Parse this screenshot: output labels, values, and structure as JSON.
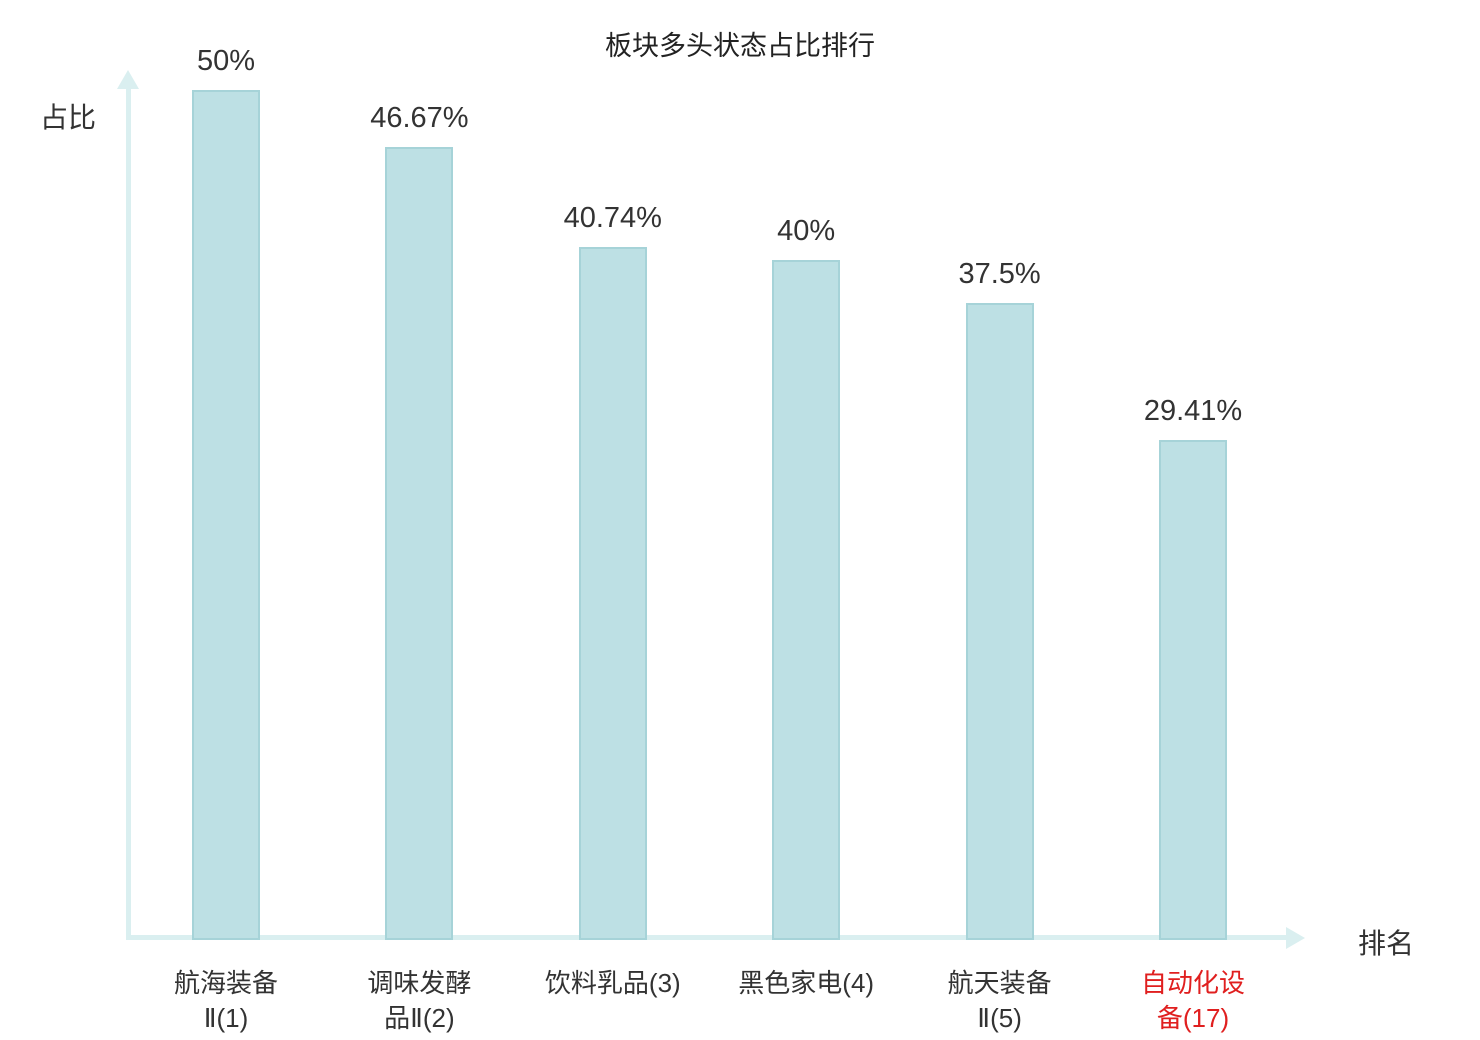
{
  "title": "板块多头状态占比排行",
  "axes": {
    "y_label": "占比",
    "x_label": "排名"
  },
  "palette": {
    "bar_fill": "#bde0e4",
    "bar_border": "#a6d3d8",
    "axis": "#daeff0",
    "text": "#333333",
    "highlight": "#e01f1f"
  },
  "chart_data": {
    "type": "bar",
    "title": "板块多头状态占比排行",
    "xlabel": "排名",
    "ylabel": "占比",
    "ylim": [
      0,
      50
    ],
    "grid": false,
    "legend": "none",
    "categories": [
      "航海装备\nⅡ(1)",
      "调味发酵\n品Ⅱ(2)",
      "饮料乳品(3)",
      "黑色家电(4)",
      "航天装备\nⅡ(5)",
      "自动化设\n备(17)"
    ],
    "values": [
      50,
      46.67,
      40.74,
      40,
      37.5,
      29.41
    ],
    "value_labels": [
      "50%",
      "46.67%",
      "40.74%",
      "40%",
      "37.5%",
      "29.41%"
    ],
    "highlighted_index": 5
  }
}
